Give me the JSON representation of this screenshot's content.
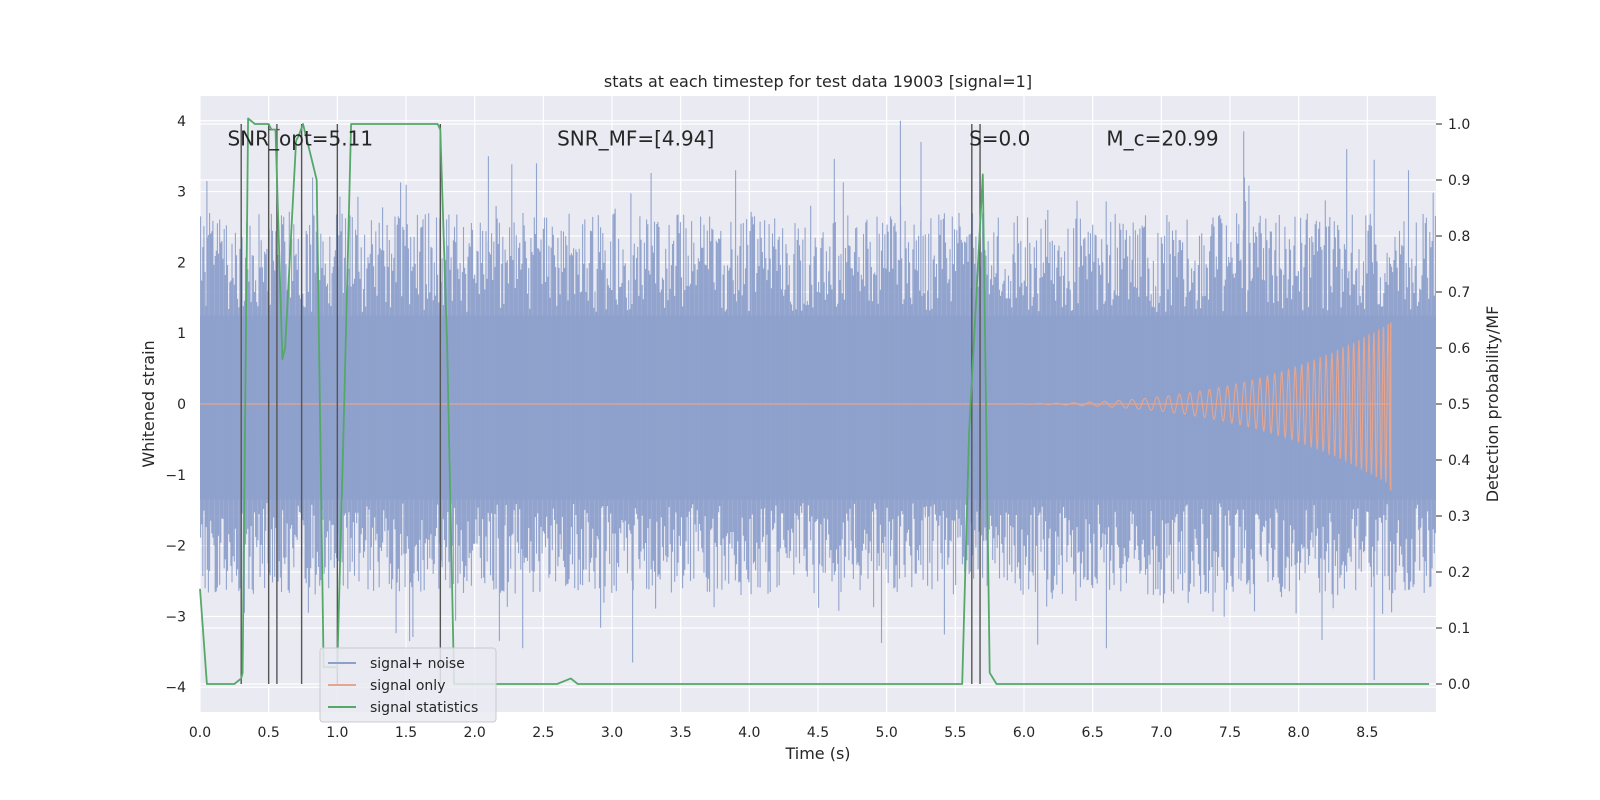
{
  "chart_data": {
    "type": "line",
    "title": "stats at each timestep for test data 19003 [signal=1]",
    "xlabel": "Time (s)",
    "ylabel_left": "Whitened strain",
    "ylabel_right": "Detection probability/MF",
    "xlim": [
      0.0,
      9.0
    ],
    "ylim_left": [
      -4.35,
      4.35
    ],
    "ylim_right": [
      -0.05,
      1.05
    ],
    "xticks": [
      0.0,
      0.5,
      1.0,
      1.5,
      2.0,
      2.5,
      3.0,
      3.5,
      4.0,
      4.5,
      5.0,
      5.5,
      6.0,
      6.5,
      7.0,
      7.5,
      8.0,
      8.5
    ],
    "xtick_labels": [
      "0.0",
      "0.5",
      "1.0",
      "1.5",
      "2.0",
      "2.5",
      "3.0",
      "3.5",
      "4.0",
      "4.5",
      "5.0",
      "5.5",
      "6.0",
      "6.5",
      "7.0",
      "7.5",
      "8.0",
      "8.5"
    ],
    "yticks_left": [
      4,
      3,
      2,
      1,
      0,
      -1,
      -2,
      -3,
      -4
    ],
    "ytick_labels_left": [
      "4",
      "3",
      "2",
      "1",
      "0",
      "−1",
      "−2",
      "−3",
      "−4"
    ],
    "yticks_right": [
      1.0,
      0.9,
      0.8,
      0.7,
      0.6,
      0.5,
      0.4,
      0.3,
      0.2,
      0.1,
      0.0
    ],
    "ytick_labels_right": [
      "1.0",
      "0.9",
      "0.8",
      "0.7",
      "0.6",
      "0.5",
      "0.4",
      "0.3",
      "0.2",
      "0.1",
      "0.0"
    ],
    "grid": true,
    "legend_position": "bottom-left",
    "annotations": [
      {
        "text": "SNR_opt=5.11",
        "x": 0.2
      },
      {
        "text": "SNR_MF=[4.94]",
        "x": 2.6
      },
      {
        "text": "S=0.0",
        "x": 5.6
      },
      {
        "text": "M_c=20.99",
        "x": 6.6
      }
    ],
    "series": [
      {
        "name": "signal+ noise",
        "axis": "left",
        "color": "#8da0cb",
        "description_level": "band",
        "amplitude_range": [
          -3.9,
          4.0
        ],
        "notable_peaks": [
          [
            0.05,
            3.15
          ],
          [
            0.82,
            3.2
          ],
          [
            2.1,
            3.5
          ],
          [
            2.45,
            3.4
          ],
          [
            3.9,
            3.3
          ],
          [
            5.1,
            4.0
          ],
          [
            5.25,
            3.7
          ],
          [
            7.6,
            3.85
          ],
          [
            8.35,
            3.6
          ],
          [
            8.55,
            3.45
          ],
          [
            8.8,
            3.3
          ]
        ],
        "notable_troughs": [
          [
            2.35,
            -3.45
          ],
          [
            3.15,
            -3.65
          ],
          [
            6.1,
            -3.4
          ],
          [
            6.6,
            -3.45
          ],
          [
            8.55,
            -3.9
          ]
        ]
      },
      {
        "name": "signal only",
        "axis": "left",
        "color": "#e5a58f",
        "chirp_start_x": 5.5,
        "chirp_end_x": 8.67,
        "peak_amplitude": 1.15
      },
      {
        "name": "signal statistics",
        "axis": "right",
        "color": "#55a868",
        "x": [
          0.0,
          0.05,
          0.1,
          0.2,
          0.25,
          0.3,
          0.31,
          0.35,
          0.4,
          0.5,
          0.52,
          0.55,
          0.6,
          0.62,
          0.7,
          0.72,
          0.75,
          0.8,
          0.85,
          0.9,
          0.95,
          1.0,
          1.05,
          1.1,
          1.2,
          1.5,
          1.73,
          1.75,
          1.8,
          1.85,
          2.0,
          2.5,
          2.6,
          2.7,
          2.75,
          3.0,
          4.0,
          5.0,
          5.55,
          5.6,
          5.7,
          5.75,
          5.8,
          6.0,
          7.0,
          8.0,
          8.5,
          8.95
        ],
        "y": [
          0.17,
          0.0,
          0.0,
          0.0,
          0.0,
          0.01,
          0.02,
          1.01,
          1.0,
          1.0,
          0.99,
          0.99,
          0.58,
          0.6,
          0.97,
          0.98,
          1.0,
          0.95,
          0.9,
          0.03,
          0.03,
          0.03,
          0.5,
          1.0,
          1.0,
          1.0,
          1.0,
          0.99,
          0.6,
          0.0,
          0.0,
          0.0,
          0.0,
          0.01,
          0.0,
          0.0,
          0.0,
          0.0,
          0.0,
          0.45,
          0.91,
          0.02,
          0.0,
          0.0,
          0.0,
          0.0,
          0.0,
          0.0
        ]
      }
    ],
    "vertical_markers": {
      "color": "#555555",
      "x": [
        0.3,
        0.5,
        0.56,
        0.74,
        1.0,
        1.75,
        5.62,
        5.68
      ],
      "note": "dark vertical lines spanning from detection probability 0 to 1"
    }
  },
  "legend": {
    "items": [
      {
        "label": "signal+ noise",
        "color": "#8da0cb"
      },
      {
        "label": "signal only",
        "color": "#e5a58f"
      },
      {
        "label": "signal statistics",
        "color": "#55a868"
      }
    ]
  },
  "colors": {
    "axes_bg": "#eaeaf2",
    "grid": "#ffffff",
    "text": "#262626"
  }
}
